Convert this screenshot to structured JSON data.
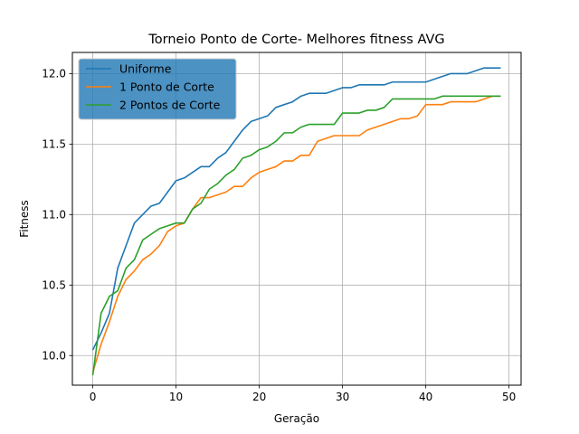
{
  "chart_data": {
    "type": "line",
    "title": "Torneio Ponto de Corte- Melhores fitness AVG",
    "xlabel": "Geração",
    "ylabel": "Fitness",
    "xlim": [
      -2.45,
      51.45
    ],
    "ylim": [
      9.79,
      12.15
    ],
    "xticks": [
      0,
      10,
      20,
      30,
      40,
      50
    ],
    "yticks": [
      10.0,
      10.5,
      11.0,
      11.5,
      12.0
    ],
    "xtick_labels": [
      "0",
      "10",
      "20",
      "30",
      "40",
      "50"
    ],
    "ytick_labels": [
      "10.0",
      "10.5",
      "11.0",
      "11.5",
      "12.0"
    ],
    "grid": true,
    "legend_position": "top-left",
    "x": [
      0,
      1,
      2,
      3,
      4,
      5,
      6,
      7,
      8,
      9,
      10,
      11,
      12,
      13,
      14,
      15,
      16,
      17,
      18,
      19,
      20,
      21,
      22,
      23,
      24,
      25,
      26,
      27,
      28,
      29,
      30,
      31,
      32,
      33,
      34,
      35,
      36,
      37,
      38,
      39,
      40,
      41,
      42,
      43,
      44,
      45,
      46,
      47,
      48,
      49
    ],
    "series": [
      {
        "name": "Uniforme",
        "color": "#1f77b4",
        "values": [
          10.04,
          10.16,
          10.3,
          10.62,
          10.78,
          10.94,
          11.0,
          11.06,
          11.08,
          11.16,
          11.24,
          11.26,
          11.3,
          11.34,
          11.34,
          11.4,
          11.44,
          11.52,
          11.6,
          11.66,
          11.68,
          11.7,
          11.76,
          11.78,
          11.8,
          11.84,
          11.86,
          11.86,
          11.86,
          11.88,
          11.9,
          11.9,
          11.92,
          11.92,
          11.92,
          11.92,
          11.94,
          11.94,
          11.94,
          11.94,
          11.94,
          11.96,
          11.98,
          12.0,
          12.0,
          12.0,
          12.02,
          12.04,
          12.04,
          12.04
        ]
      },
      {
        "name": "1 Ponto de Corte",
        "color": "#ff7f0e",
        "values": [
          9.88,
          10.08,
          10.24,
          10.42,
          10.54,
          10.6,
          10.68,
          10.72,
          10.78,
          10.88,
          10.92,
          10.94,
          11.04,
          11.12,
          11.12,
          11.14,
          11.16,
          11.2,
          11.2,
          11.26,
          11.3,
          11.32,
          11.34,
          11.38,
          11.38,
          11.42,
          11.42,
          11.52,
          11.54,
          11.56,
          11.56,
          11.56,
          11.56,
          11.6,
          11.62,
          11.64,
          11.66,
          11.68,
          11.68,
          11.7,
          11.78,
          11.78,
          11.78,
          11.8,
          11.8,
          11.8,
          11.8,
          11.82,
          11.84,
          11.84
        ]
      },
      {
        "name": "2 Pontos de Corte",
        "color": "#2ca02c",
        "values": [
          9.86,
          10.3,
          10.42,
          10.46,
          10.62,
          10.68,
          10.82,
          10.86,
          10.9,
          10.92,
          10.94,
          10.94,
          11.04,
          11.08,
          11.18,
          11.22,
          11.28,
          11.32,
          11.4,
          11.42,
          11.46,
          11.48,
          11.52,
          11.58,
          11.58,
          11.62,
          11.64,
          11.64,
          11.64,
          11.64,
          11.72,
          11.72,
          11.72,
          11.74,
          11.74,
          11.76,
          11.82,
          11.82,
          11.82,
          11.82,
          11.82,
          11.82,
          11.84,
          11.84,
          11.84,
          11.84,
          11.84,
          11.84,
          11.84,
          11.84
        ]
      }
    ]
  }
}
